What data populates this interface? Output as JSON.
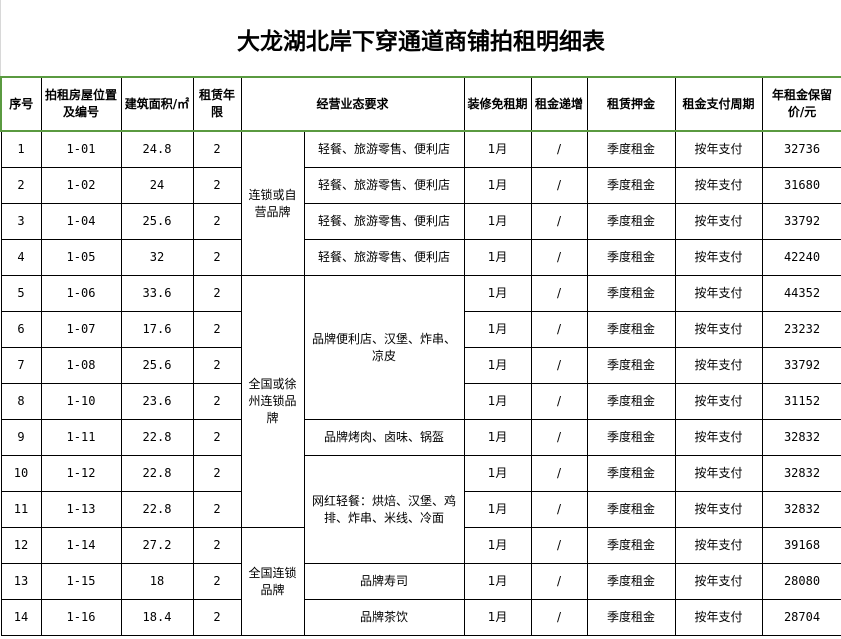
{
  "title": "大龙湖北岸下穿通道商铺拍租明细表",
  "headers": [
    "序号",
    "拍租房屋位置及编号",
    "建筑面积/㎡",
    "租赁年限",
    "经营业态要求",
    "装修免租期",
    "租金递增",
    "租赁押金",
    "租金支付周期",
    "年租金保留价/元"
  ],
  "groups": [
    {
      "label": "连锁或自营品牌",
      "rows": 4
    },
    {
      "label": "全国或徐州连锁品牌",
      "rows": 7
    },
    {
      "label": "全国连锁品牌",
      "rows": 3
    }
  ],
  "business": [
    {
      "label": "轻餐、旅游零售、便利店",
      "rows": 1
    },
    {
      "label": "轻餐、旅游零售、便利店",
      "rows": 1
    },
    {
      "label": "轻餐、旅游零售、便利店",
      "rows": 1
    },
    {
      "label": "轻餐、旅游零售、便利店",
      "rows": 1
    },
    {
      "label": "品牌便利店、汉堡、炸串、凉皮",
      "rows": 4
    },
    {
      "label": "品牌烤肉、卤味、锅盔",
      "rows": 1
    },
    {
      "label": "网红轻餐：烘焙、汉堡、鸡排、炸串、米线、冷面",
      "rows": 3
    },
    {
      "label": "品牌寿司",
      "rows": 1
    },
    {
      "label": "品牌茶饮",
      "rows": 1
    }
  ],
  "rows": [
    {
      "no": "1",
      "unit": "1-01",
      "area": "24.8",
      "years": "2",
      "free": "1月",
      "inc": "/",
      "deposit": "季度租金",
      "pay": "按年支付",
      "price": "32736"
    },
    {
      "no": "2",
      "unit": "1-02",
      "area": "24",
      "years": "2",
      "free": "1月",
      "inc": "/",
      "deposit": "季度租金",
      "pay": "按年支付",
      "price": "31680"
    },
    {
      "no": "3",
      "unit": "1-04",
      "area": "25.6",
      "years": "2",
      "free": "1月",
      "inc": "/",
      "deposit": "季度租金",
      "pay": "按年支付",
      "price": "33792"
    },
    {
      "no": "4",
      "unit": "1-05",
      "area": "32",
      "years": "2",
      "free": "1月",
      "inc": "/",
      "deposit": "季度租金",
      "pay": "按年支付",
      "price": "42240"
    },
    {
      "no": "5",
      "unit": "1-06",
      "area": "33.6",
      "years": "2",
      "free": "1月",
      "inc": "/",
      "deposit": "季度租金",
      "pay": "按年支付",
      "price": "44352"
    },
    {
      "no": "6",
      "unit": "1-07",
      "area": "17.6",
      "years": "2",
      "free": "1月",
      "inc": "/",
      "deposit": "季度租金",
      "pay": "按年支付",
      "price": "23232"
    },
    {
      "no": "7",
      "unit": "1-08",
      "area": "25.6",
      "years": "2",
      "free": "1月",
      "inc": "/",
      "deposit": "季度租金",
      "pay": "按年支付",
      "price": "33792"
    },
    {
      "no": "8",
      "unit": "1-10",
      "area": "23.6",
      "years": "2",
      "free": "1月",
      "inc": "/",
      "deposit": "季度租金",
      "pay": "按年支付",
      "price": "31152"
    },
    {
      "no": "9",
      "unit": "1-11",
      "area": "22.8",
      "years": "2",
      "free": "1月",
      "inc": "/",
      "deposit": "季度租金",
      "pay": "按年支付",
      "price": "32832"
    },
    {
      "no": "10",
      "unit": "1-12",
      "area": "22.8",
      "years": "2",
      "free": "1月",
      "inc": "/",
      "deposit": "季度租金",
      "pay": "按年支付",
      "price": "32832"
    },
    {
      "no": "11",
      "unit": "1-13",
      "area": "22.8",
      "years": "2",
      "free": "1月",
      "inc": "/",
      "deposit": "季度租金",
      "pay": "按年支付",
      "price": "32832"
    },
    {
      "no": "12",
      "unit": "1-14",
      "area": "27.2",
      "years": "2",
      "free": "1月",
      "inc": "/",
      "deposit": "季度租金",
      "pay": "按年支付",
      "price": "39168"
    },
    {
      "no": "13",
      "unit": "1-15",
      "area": "18",
      "years": "2",
      "free": "1月",
      "inc": "/",
      "deposit": "季度租金",
      "pay": "按年支付",
      "price": "28080"
    },
    {
      "no": "14",
      "unit": "1-16",
      "area": "18.4",
      "years": "2",
      "free": "1月",
      "inc": "/",
      "deposit": "季度租金",
      "pay": "按年支付",
      "price": "28704"
    }
  ]
}
